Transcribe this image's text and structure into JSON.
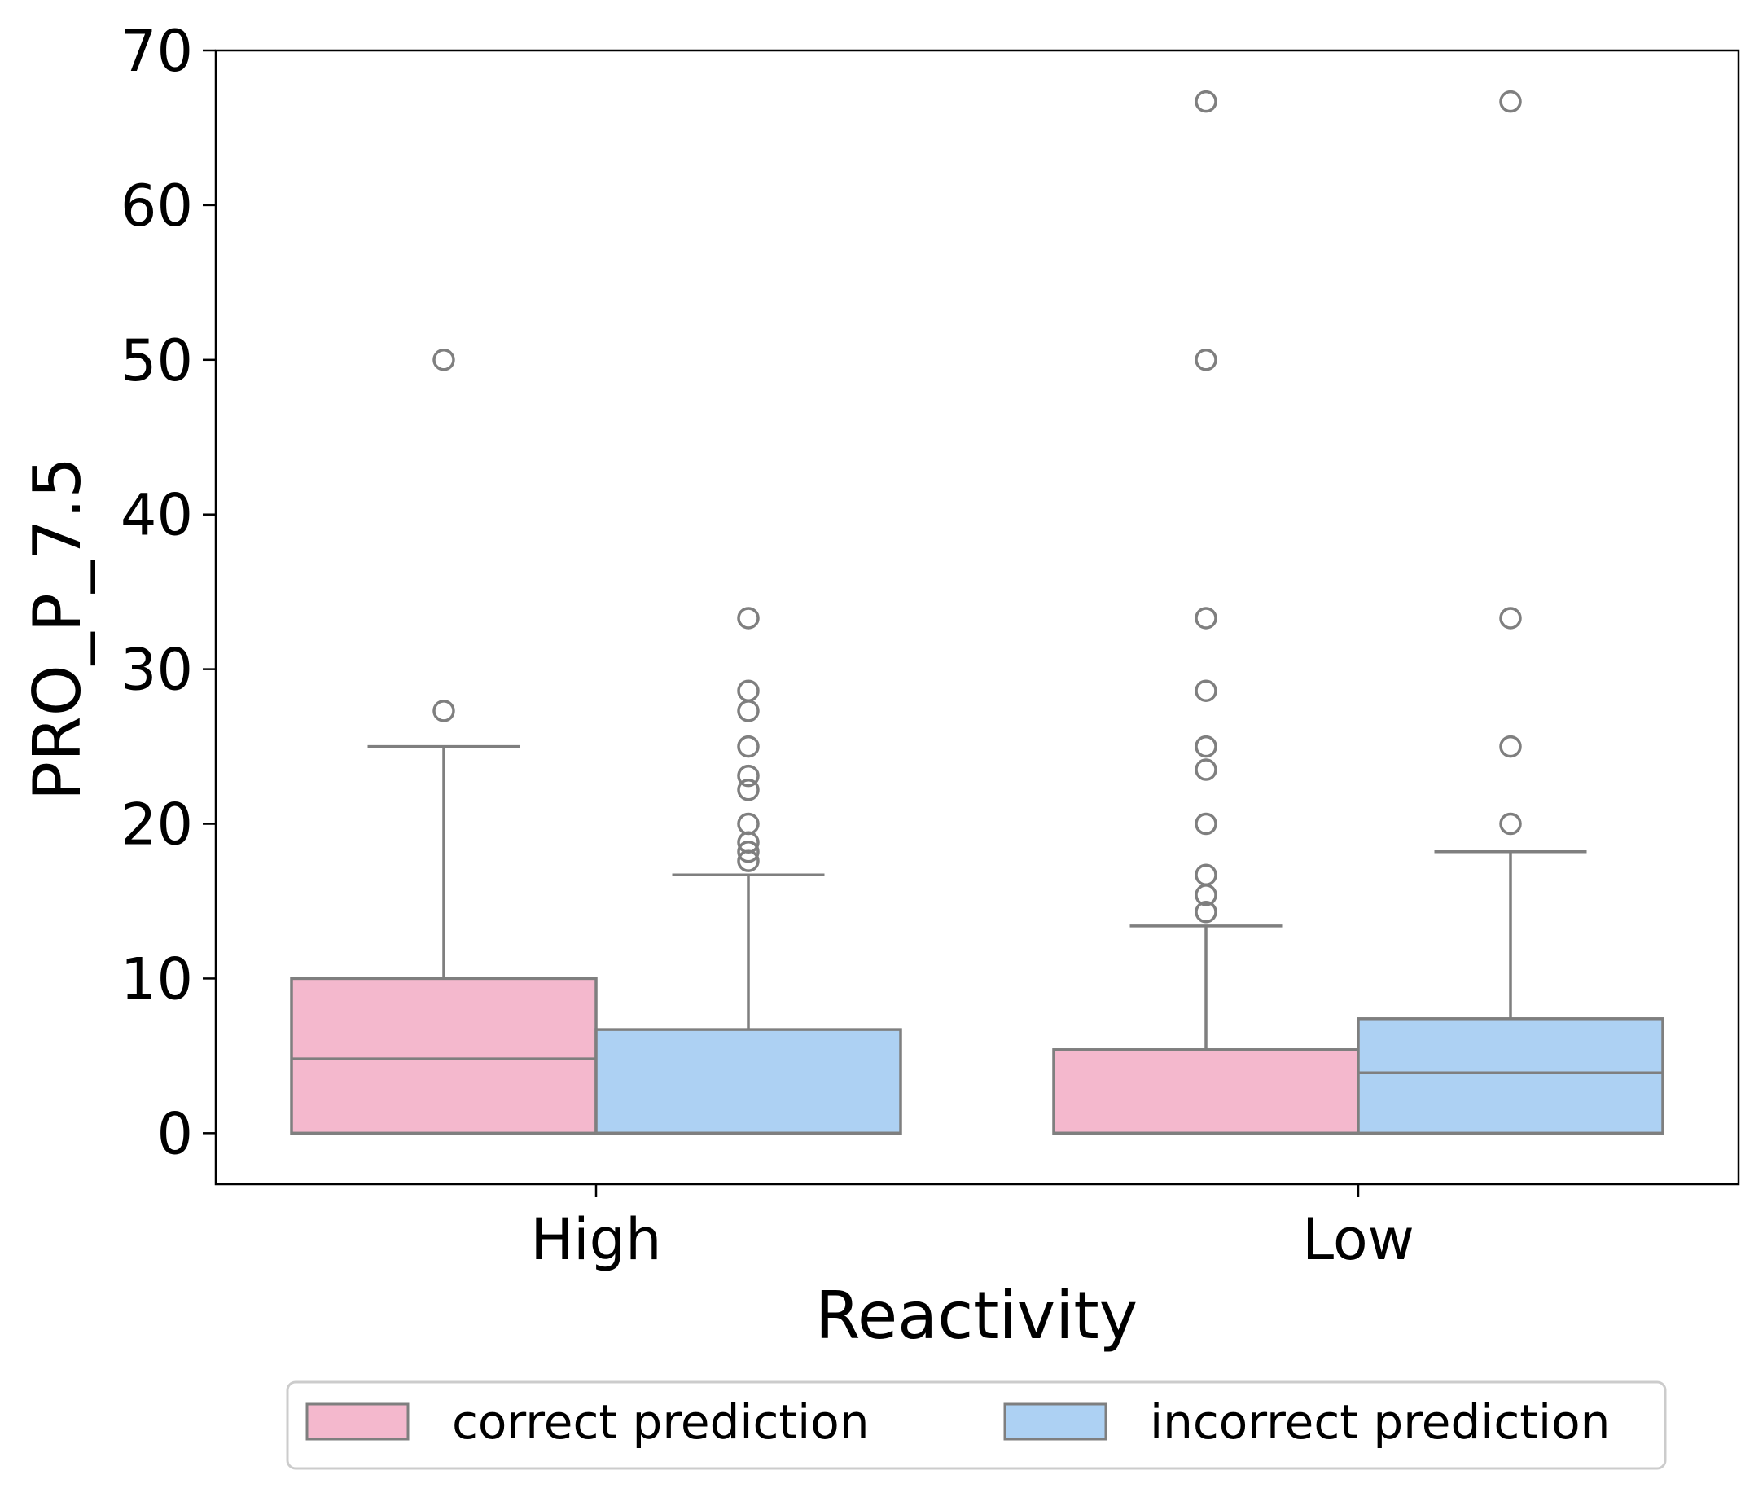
{
  "chart_data": {
    "type": "boxplot",
    "xlabel": "Reactivity",
    "ylabel": "PRO_P_7.5",
    "categories": [
      "High",
      "Low"
    ],
    "ylim": [
      -3.3,
      70
    ],
    "yticks": [
      0,
      10,
      20,
      30,
      40,
      50,
      60,
      70
    ],
    "grid": false,
    "legend_position": "bottom-center",
    "series": [
      {
        "name": "correct prediction",
        "color": "#f4b8cd",
        "boxes": [
          {
            "category": "High",
            "q1": 0,
            "median": 4.8,
            "q3": 10.0,
            "whisker_low": 0,
            "whisker_high": 25.0,
            "outliers": [
              27.3,
              50.0
            ]
          },
          {
            "category": "Low",
            "q1": 0,
            "median": 0,
            "q3": 5.4,
            "whisker_low": 0,
            "whisker_high": 13.4,
            "outliers": [
              14.3,
              15.4,
              16.7,
              20.0,
              23.5,
              25.0,
              28.6,
              33.3,
              50.0,
              66.7
            ]
          }
        ]
      },
      {
        "name": "incorrect prediction",
        "color": "#add1f3",
        "boxes": [
          {
            "category": "High",
            "q1": 0,
            "median": 0,
            "q3": 6.7,
            "whisker_low": 0,
            "whisker_high": 16.7,
            "outliers": [
              17.6,
              18.2,
              18.8,
              20.0,
              22.2,
              23.1,
              25.0,
              27.3,
              28.6,
              33.3
            ]
          },
          {
            "category": "Low",
            "q1": 0,
            "median": 3.9,
            "q3": 7.4,
            "whisker_low": 0,
            "whisker_high": 18.2,
            "outliers": [
              20.0,
              25.0,
              33.3,
              66.7
            ]
          }
        ]
      }
    ],
    "line_color": "#7f7f7f"
  }
}
